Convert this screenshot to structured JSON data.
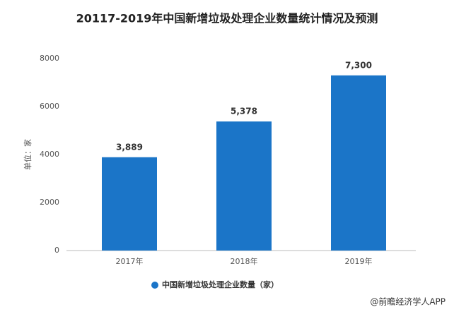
{
  "chart_data": {
    "type": "bar",
    "title": "20117-2019年中国新增垃圾处理企业数量统计情况及预测",
    "y_axis_label": "单位：家",
    "categories": [
      "2017年",
      "2018年",
      "2019年"
    ],
    "series": [
      {
        "name": "中国新增垃圾处理企业数量（家）",
        "color": "#1b75c8",
        "values": [
          3889,
          5378,
          7300
        ],
        "value_labels": [
          "3,889",
          "5,378",
          "7,300"
        ]
      }
    ],
    "ylim": [
      0,
      8000
    ],
    "yticks": [
      0,
      2000,
      4000,
      6000,
      8000
    ],
    "grid": false,
    "legend": "bottom",
    "source": "@前瞻经济学人APP"
  }
}
